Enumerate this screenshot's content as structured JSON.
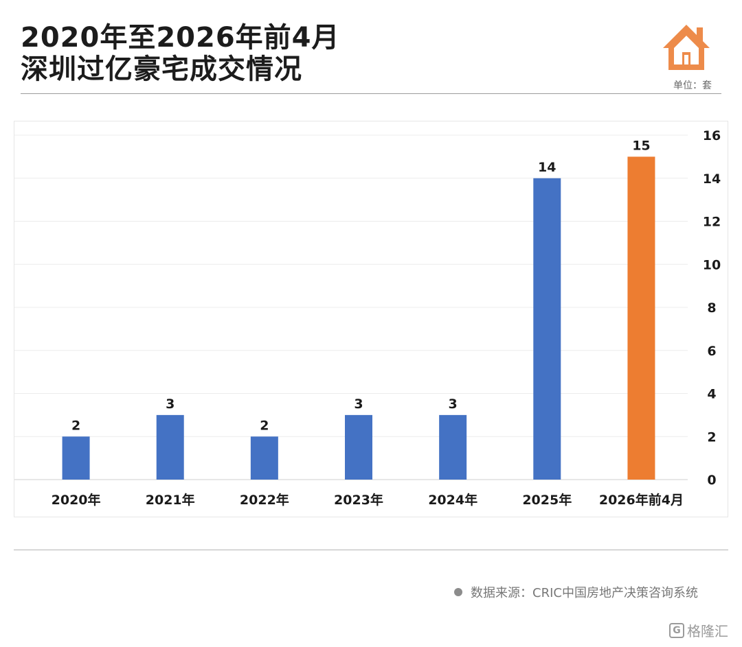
{
  "header": {
    "title_line1": "2020年至2026年前4月",
    "title_line2": "深圳过亿豪宅成交情况",
    "unit": "单位：套"
  },
  "footer": {
    "source": "数据来源：CRIC中国房地产决策咨询系统",
    "brand": "格隆汇",
    "brand_icon_text": "G"
  },
  "icons": {
    "header_icon": "house-icon",
    "brand_icon": "gelonghui-logo-icon"
  },
  "colors": {
    "bar_default": "#4472C4",
    "bar_highlight": "#ED7D31",
    "house_icon": "#ED8B4A"
  },
  "chart_data": {
    "type": "bar",
    "categories": [
      "2020年",
      "2021年",
      "2022年",
      "2023年",
      "2024年",
      "2025年",
      "2026年前4月"
    ],
    "values": [
      2,
      3,
      2,
      3,
      3,
      14,
      15
    ],
    "highlight_index": 6,
    "ylim": [
      0,
      16
    ],
    "yticks": [
      0,
      2,
      4,
      6,
      8,
      10,
      12,
      14,
      16
    ],
    "y_axis_position": "right",
    "grid": true,
    "data_labels": true,
    "title": "",
    "xlabel": "",
    "ylabel": ""
  }
}
